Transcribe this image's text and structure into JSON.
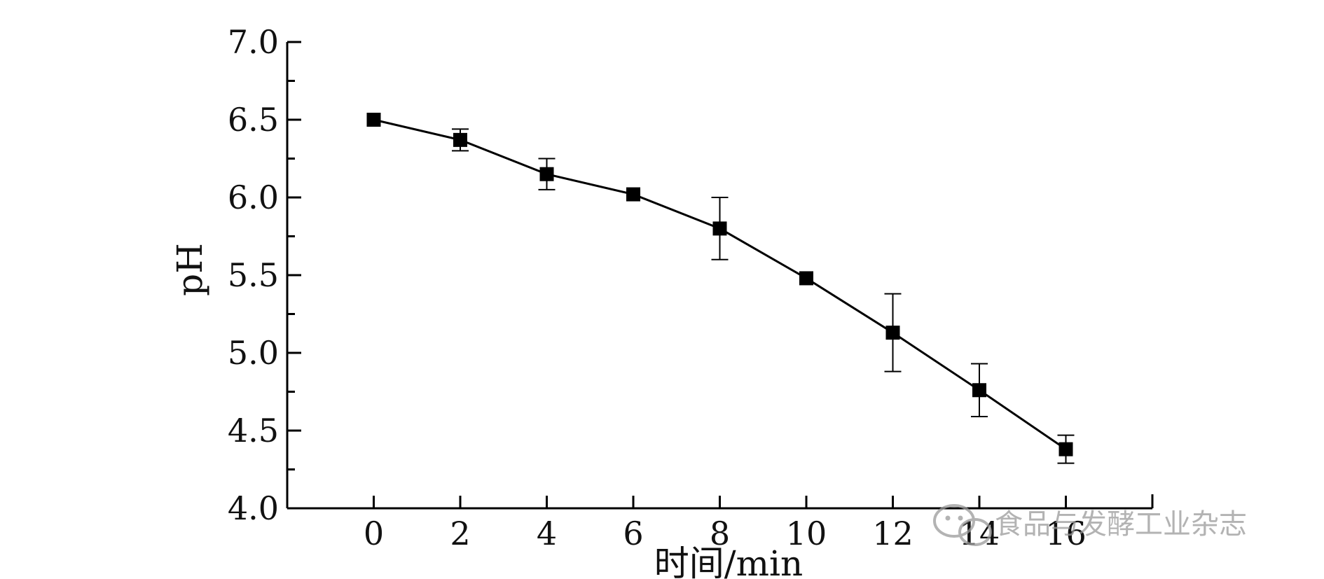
{
  "chart_data": {
    "type": "line",
    "xlabel": "时间/min",
    "ylabel": "pH",
    "xlim": [
      -2,
      18
    ],
    "ylim": [
      4.0,
      7.0
    ],
    "x_ticks": [
      "0",
      "2",
      "4",
      "6",
      "8",
      "10",
      "12",
      "14",
      "16"
    ],
    "y_ticks": [
      "4.0",
      "4.5",
      "5.0",
      "5.5",
      "6.0",
      "6.5",
      "7.0"
    ],
    "grid": false,
    "series": [
      {
        "x": [
          0,
          2,
          4,
          6,
          8,
          10,
          12,
          14,
          16
        ],
        "y": [
          6.5,
          6.37,
          6.15,
          6.02,
          5.8,
          5.48,
          5.13,
          4.76,
          4.38
        ],
        "error": [
          0.01,
          0.07,
          0.1,
          0.01,
          0.2,
          0.01,
          0.25,
          0.17,
          0.09
        ],
        "marker": "square",
        "color": "#000000"
      }
    ]
  },
  "watermark": {
    "text": "食品与发酵工业杂志",
    "icon": "wechat-icon"
  }
}
